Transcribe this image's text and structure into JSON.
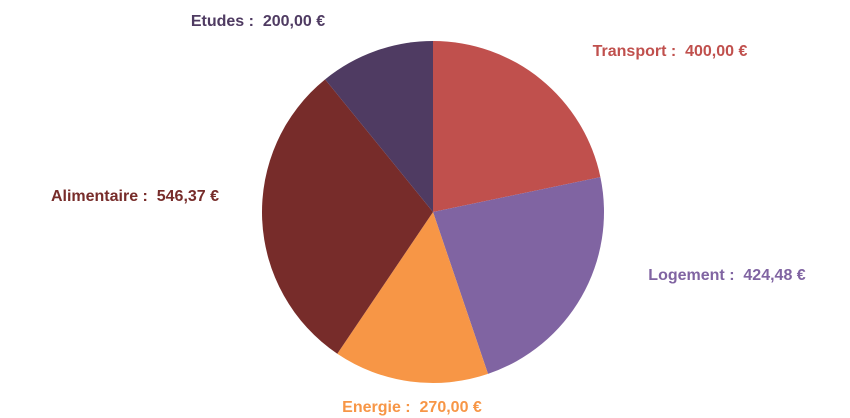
{
  "chart_data": {
    "type": "pie",
    "values": [
      400,
      424.48,
      270,
      546.37,
      200
    ],
    "value_labels": [
      "Transport :  400,00 €",
      "Logement :  424,48 €",
      "Energie :  270,00 €",
      "Alimentaire :  546,37 €",
      "Etudes :  200,00 €"
    ],
    "colors": [
      "#c0504d",
      "#8064a2",
      "#f79646",
      "#772c2a",
      "#4f3b62"
    ]
  }
}
